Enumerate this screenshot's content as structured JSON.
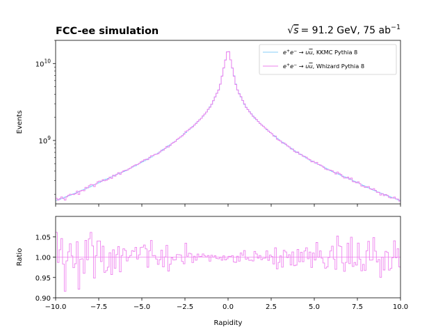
{
  "chart_data": {
    "type": "line",
    "title_left": "FCC-ee simulation",
    "title_right_sqrt": "s",
    "title_right_rest": "= 91.2 GeV, 75 ab",
    "title_right_sup": "−1",
    "xlabel": "Rapidity",
    "main": {
      "ylabel": "Events",
      "yscale": "log",
      "ylim": [
        150000000,
        20000000000
      ],
      "yticks": [
        {
          "value": 1000000000,
          "base": "10",
          "exp": "9"
        },
        {
          "value": 10000000000,
          "base": "10",
          "exp": "10"
        }
      ],
      "x_knots": [
        -10,
        -9,
        -8,
        -7,
        -6,
        -5,
        -4,
        -3,
        -2,
        -1.5,
        -1,
        -0.5,
        0,
        0.5,
        1,
        1.5,
        2,
        3,
        4,
        5,
        6,
        7,
        8,
        9,
        10
      ],
      "y_knots": [
        165000000,
        200000000,
        250000000,
        320000000,
        400000000,
        520000000,
        700000000,
        1000000000,
        1550000000,
        2000000000,
        2800000000,
        4800000000,
        16000000000,
        4800000000,
        2800000000,
        2000000000,
        1550000000,
        1000000000,
        700000000,
        520000000,
        400000000,
        320000000,
        250000000,
        200000000,
        165000000
      ],
      "series": [
        {
          "name": "KKMC Pythia 8",
          "color": "#87cefa"
        },
        {
          "name": "Whizard Pythia 8",
          "color": "#ee82ee"
        }
      ],
      "legend": {
        "placement": "top-right"
      }
    },
    "ratio": {
      "ylabel": "Ratio",
      "ylim": [
        0.9,
        1.1
      ],
      "yticks": [
        "0.90",
        "0.95",
        "1.00",
        "1.05"
      ],
      "reference": 1.0,
      "color": "#ee82ee"
    },
    "xlim": [
      -10,
      10
    ],
    "xticks": [
      "−10.0",
      "−7.5",
      "−5.0",
      "−2.5",
      "0.0",
      "2.5",
      "5.0",
      "7.5",
      "10.0"
    ],
    "nbins": 200
  }
}
